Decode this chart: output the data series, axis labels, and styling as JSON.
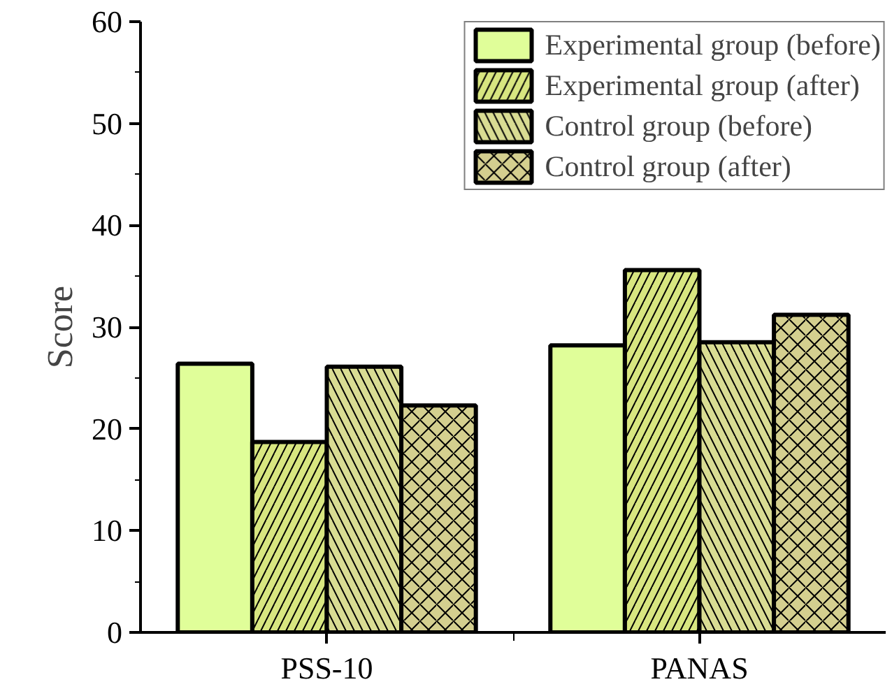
{
  "chart_data": {
    "type": "bar",
    "ylabel": "Score",
    "categories": [
      "PSS-10",
      "PANAS"
    ],
    "series": [
      {
        "name": "Experimental group (before)",
        "color": "#e0fe99",
        "values": [
          26.4,
          28.2
        ]
      },
      {
        "name": "Experimental group (after)",
        "color": "#d8e680",
        "values": [
          18.7,
          35.6
        ]
      },
      {
        "name": "Control group (before)",
        "color": "#d9dc93",
        "values": [
          26.1,
          28.5
        ]
      },
      {
        "name": "Control group (after)",
        "color": "#d4cf8f",
        "values": [
          22.3,
          31.2
        ]
      }
    ],
    "ylim": [
      0,
      60
    ],
    "yticks": [
      0,
      10,
      20,
      30,
      40,
      50,
      60
    ],
    "grid": false,
    "legend": "top right"
  }
}
